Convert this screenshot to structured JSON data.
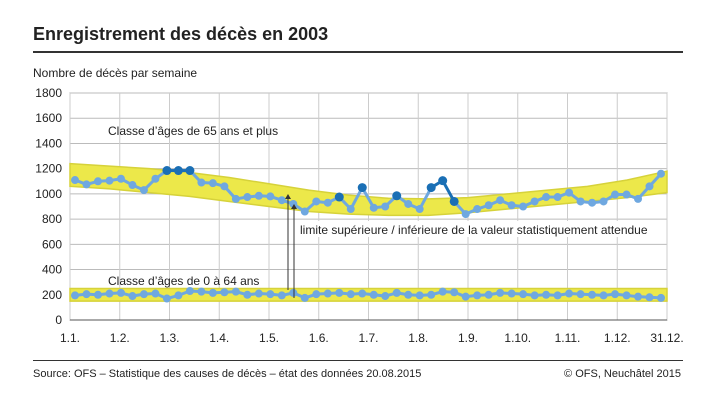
{
  "header": {
    "title": "Enregistrement des décès en 2003"
  },
  "footer": {
    "source": "Source: OFS – Statistique des causes de décès – état des données 20.08.2015",
    "copyright": "© OFS, Neuchâtel 2015"
  },
  "chart_data": {
    "type": "line",
    "title": "Enregistrement des décès en 2003",
    "ylabel": "Nombre de décès par semaine",
    "xlabel": "",
    "ylim": [
      0,
      1800
    ],
    "yticks": [
      0,
      200,
      400,
      600,
      800,
      1000,
      1200,
      1400,
      1600,
      1800
    ],
    "xticks": [
      "1.1.",
      "1.2.",
      "1.3.",
      "1.4.",
      "1.5.",
      "1.6.",
      "1.7.",
      "1.8.",
      "1.9.",
      "1.10.",
      "1.11.",
      "1.12.",
      "31.12."
    ],
    "grid": true,
    "colors": {
      "series": "#6fa8e0",
      "exceed": "#1a6fb5",
      "band": "#ece84a"
    },
    "annotations": [
      "Classe d’âges de 65 ans et plus",
      "Classe d’âges de 0 à 64 ans",
      "limite supérieure / inférieure de la valeur statistiquement attendue"
    ],
    "series": [
      {
        "name": "Classe d’âges de 65 ans et plus",
        "values": [
          1110,
          1075,
          1100,
          1105,
          1120,
          1070,
          1030,
          1120,
          1185,
          1185,
          1185,
          1090,
          1085,
          1060,
          960,
          975,
          985,
          980,
          950,
          920,
          860,
          940,
          930,
          975,
          880,
          1050,
          890,
          900,
          985,
          920,
          880,
          1050,
          1105,
          940,
          840,
          880,
          910,
          950,
          910,
          900,
          940,
          975,
          975,
          1010,
          940,
          930,
          940,
          995,
          995,
          960,
          1060,
          1160
        ],
        "exceeds_upper_limit_weeks": [
          9,
          10,
          11,
          24,
          26,
          29,
          32,
          33,
          34
        ],
        "band_upper": [
          1240,
          1220,
          1200,
          1170,
          1130,
          1080,
          1030,
          990,
          965,
          960,
          970,
          1000,
          1030,
          1060,
          1110,
          1180
        ],
        "band_lower": [
          1060,
          1040,
          1010,
          980,
          940,
          900,
          860,
          840,
          830,
          830,
          850,
          880,
          910,
          940,
          970,
          1010
        ]
      },
      {
        "name": "Classe d’âges de 0 à 64 ans",
        "values": [
          195,
          205,
          200,
          210,
          215,
          190,
          205,
          210,
          170,
          195,
          230,
          225,
          215,
          220,
          225,
          200,
          210,
          205,
          195,
          215,
          175,
          205,
          210,
          215,
          205,
          210,
          200,
          190,
          215,
          200,
          195,
          200,
          225,
          220,
          185,
          195,
          200,
          215,
          210,
          205,
          195,
          200,
          195,
          210,
          205,
          200,
          195,
          205,
          195,
          185,
          180,
          175
        ],
        "band_upper": [
          250,
          250,
          250,
          250,
          250,
          250,
          250,
          250,
          250,
          250,
          250,
          250,
          250,
          250,
          250,
          250
        ],
        "band_lower": [
          150,
          150,
          150,
          150,
          150,
          150,
          150,
          150,
          150,
          150,
          150,
          150,
          150,
          150,
          150,
          150
        ]
      }
    ]
  }
}
